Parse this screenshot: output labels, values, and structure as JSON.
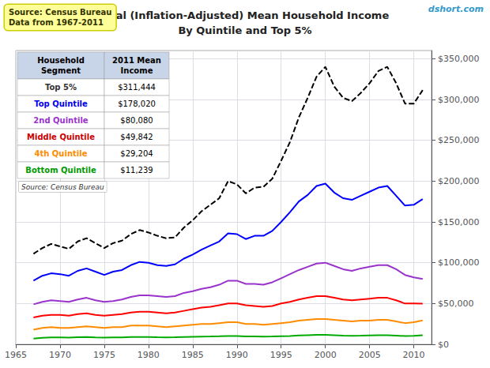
{
  "chart_data": {
    "type": "line",
    "title": "Real (Inflation-Adjusted) Mean Household Income",
    "subtitle": "By Quintile and Top 5%",
    "source_box": "Source: Census Bureau\nData from 1967-2011",
    "watermark": "dshort.com",
    "x": [
      1967,
      1968,
      1969,
      1970,
      1971,
      1972,
      1973,
      1974,
      1975,
      1976,
      1977,
      1978,
      1979,
      1980,
      1981,
      1982,
      1983,
      1984,
      1985,
      1986,
      1987,
      1988,
      1989,
      1990,
      1991,
      1992,
      1993,
      1994,
      1995,
      1996,
      1997,
      1998,
      1999,
      2000,
      2001,
      2002,
      2003,
      2004,
      2005,
      2006,
      2007,
      2008,
      2009,
      2010,
      2011
    ],
    "series": [
      {
        "name": "Bottom Quintile",
        "color": "#00AA00",
        "line_style": "solid",
        "values": [
          7000,
          8000,
          8500,
          8500,
          8200,
          8800,
          9000,
          8500,
          8300,
          8400,
          8500,
          9000,
          9000,
          9000,
          8700,
          8500,
          8600,
          9000,
          9300,
          9500,
          9600,
          9800,
          10200,
          10100,
          9700,
          9600,
          9400,
          9600,
          10000,
          10200,
          10800,
          11200,
          11500,
          11500,
          11100,
          10700,
          10500,
          10700,
          11000,
          11200,
          11200,
          10700,
          10100,
          10400,
          11239
        ]
      },
      {
        "name": "4th Quintile",
        "color": "#FF8C00",
        "line_style": "solid",
        "values": [
          18000,
          20000,
          21000,
          20000,
          20000,
          21000,
          22000,
          21000,
          20000,
          21000,
          21000,
          23000,
          23000,
          23000,
          22000,
          21000,
          22000,
          23000,
          24000,
          25000,
          25000,
          26000,
          27000,
          27000,
          25000,
          25000,
          24000,
          25000,
          26000,
          27000,
          29000,
          30000,
          31000,
          31000,
          30000,
          29000,
          28000,
          29000,
          29000,
          30000,
          30000,
          28000,
          26000,
          27000,
          29204
        ]
      },
      {
        "name": "Middle Quintile",
        "color": "#FF0000",
        "line_style": "solid",
        "values": [
          33000,
          35000,
          36000,
          36000,
          35000,
          37000,
          38000,
          36000,
          35000,
          36000,
          37000,
          39000,
          40000,
          40000,
          39000,
          38000,
          39000,
          41000,
          43000,
          45000,
          46000,
          48000,
          50000,
          50000,
          48000,
          47000,
          46000,
          47000,
          50000,
          52000,
          55000,
          57000,
          59000,
          59000,
          57000,
          55000,
          54000,
          55000,
          56000,
          57000,
          57000,
          54000,
          50000,
          50000,
          49842
        ]
      },
      {
        "name": "2nd Quintile",
        "color": "#9933CC",
        "line_style": "solid",
        "values": [
          49000,
          52000,
          54000,
          53000,
          52000,
          55000,
          57000,
          54000,
          52000,
          53000,
          55000,
          58000,
          60000,
          60000,
          59000,
          58000,
          59000,
          63000,
          65000,
          68000,
          70000,
          73000,
          78000,
          78000,
          74000,
          74000,
          73000,
          76000,
          81000,
          86000,
          91000,
          95000,
          99000,
          100000,
          96000,
          92000,
          90000,
          93000,
          95000,
          97000,
          97000,
          92000,
          85000,
          82000,
          80080
        ]
      },
      {
        "name": "Top Quintile",
        "color": "#0000FF",
        "line_style": "solid",
        "values": [
          78000,
          84000,
          87000,
          86000,
          84000,
          90000,
          93000,
          89000,
          85000,
          89000,
          91000,
          97000,
          101000,
          100000,
          97000,
          96000,
          98000,
          105000,
          110000,
          116000,
          121000,
          126000,
          136000,
          135000,
          129000,
          133000,
          133000,
          139000,
          150000,
          162000,
          175000,
          183000,
          194000,
          197000,
          186000,
          179000,
          177000,
          182000,
          187000,
          192000,
          194000,
          182000,
          170000,
          171000,
          178020
        ]
      },
      {
        "name": "Top 5%",
        "color": "#000000",
        "line_style": "dashed",
        "values": [
          111000,
          118000,
          123000,
          120000,
          117000,
          126000,
          130000,
          124000,
          118000,
          124000,
          127000,
          135000,
          140000,
          137000,
          133000,
          130000,
          131000,
          143000,
          152000,
          163000,
          171000,
          179000,
          200000,
          196000,
          185000,
          192000,
          193000,
          203000,
          225000,
          248000,
          278000,
          302000,
          328000,
          340000,
          316000,
          302000,
          298000,
          308000,
          320000,
          335000,
          340000,
          320000,
          295000,
          295000,
          311444
        ]
      }
    ],
    "table": {
      "header": [
        "Household\nSegment",
        "2011 Mean\nIncome"
      ],
      "rows": [
        {
          "label": "Top 5%",
          "value": "$311,444",
          "color": "#333333"
        },
        {
          "label": "Top Quintile",
          "value": "$178,020",
          "color": "#0000EE"
        },
        {
          "label": "2nd Quintile",
          "value": "$80,080",
          "color": "#9933CC"
        },
        {
          "label": "Middle Quintile",
          "value": "$49,842",
          "color": "#CC0000"
        },
        {
          "label": "4th Quintile",
          "value": "$29,204",
          "color": "#FF8C00"
        },
        {
          "label": "Bottom Quintile",
          "value": "$11,239",
          "color": "#009900"
        }
      ],
      "note": "Source: Census Bureau"
    },
    "xlim": [
      1965,
      2012
    ],
    "xticks": [
      1965,
      1970,
      1975,
      1980,
      1985,
      1990,
      1995,
      2000,
      2005,
      2010
    ],
    "ylim": [
      0,
      360000
    ],
    "yticks": [
      {
        "value": 0,
        "label": "$0"
      },
      {
        "value": 50000,
        "label": "$50,000"
      },
      {
        "value": 100000,
        "label": "$100,000"
      },
      {
        "value": 150000,
        "label": "$150,000"
      },
      {
        "value": 200000,
        "label": "$200,000"
      },
      {
        "value": 250000,
        "label": "$250,000"
      },
      {
        "value": 300000,
        "label": "$300,000"
      },
      {
        "value": 350000,
        "label": "$350,000"
      }
    ],
    "grid": true
  }
}
